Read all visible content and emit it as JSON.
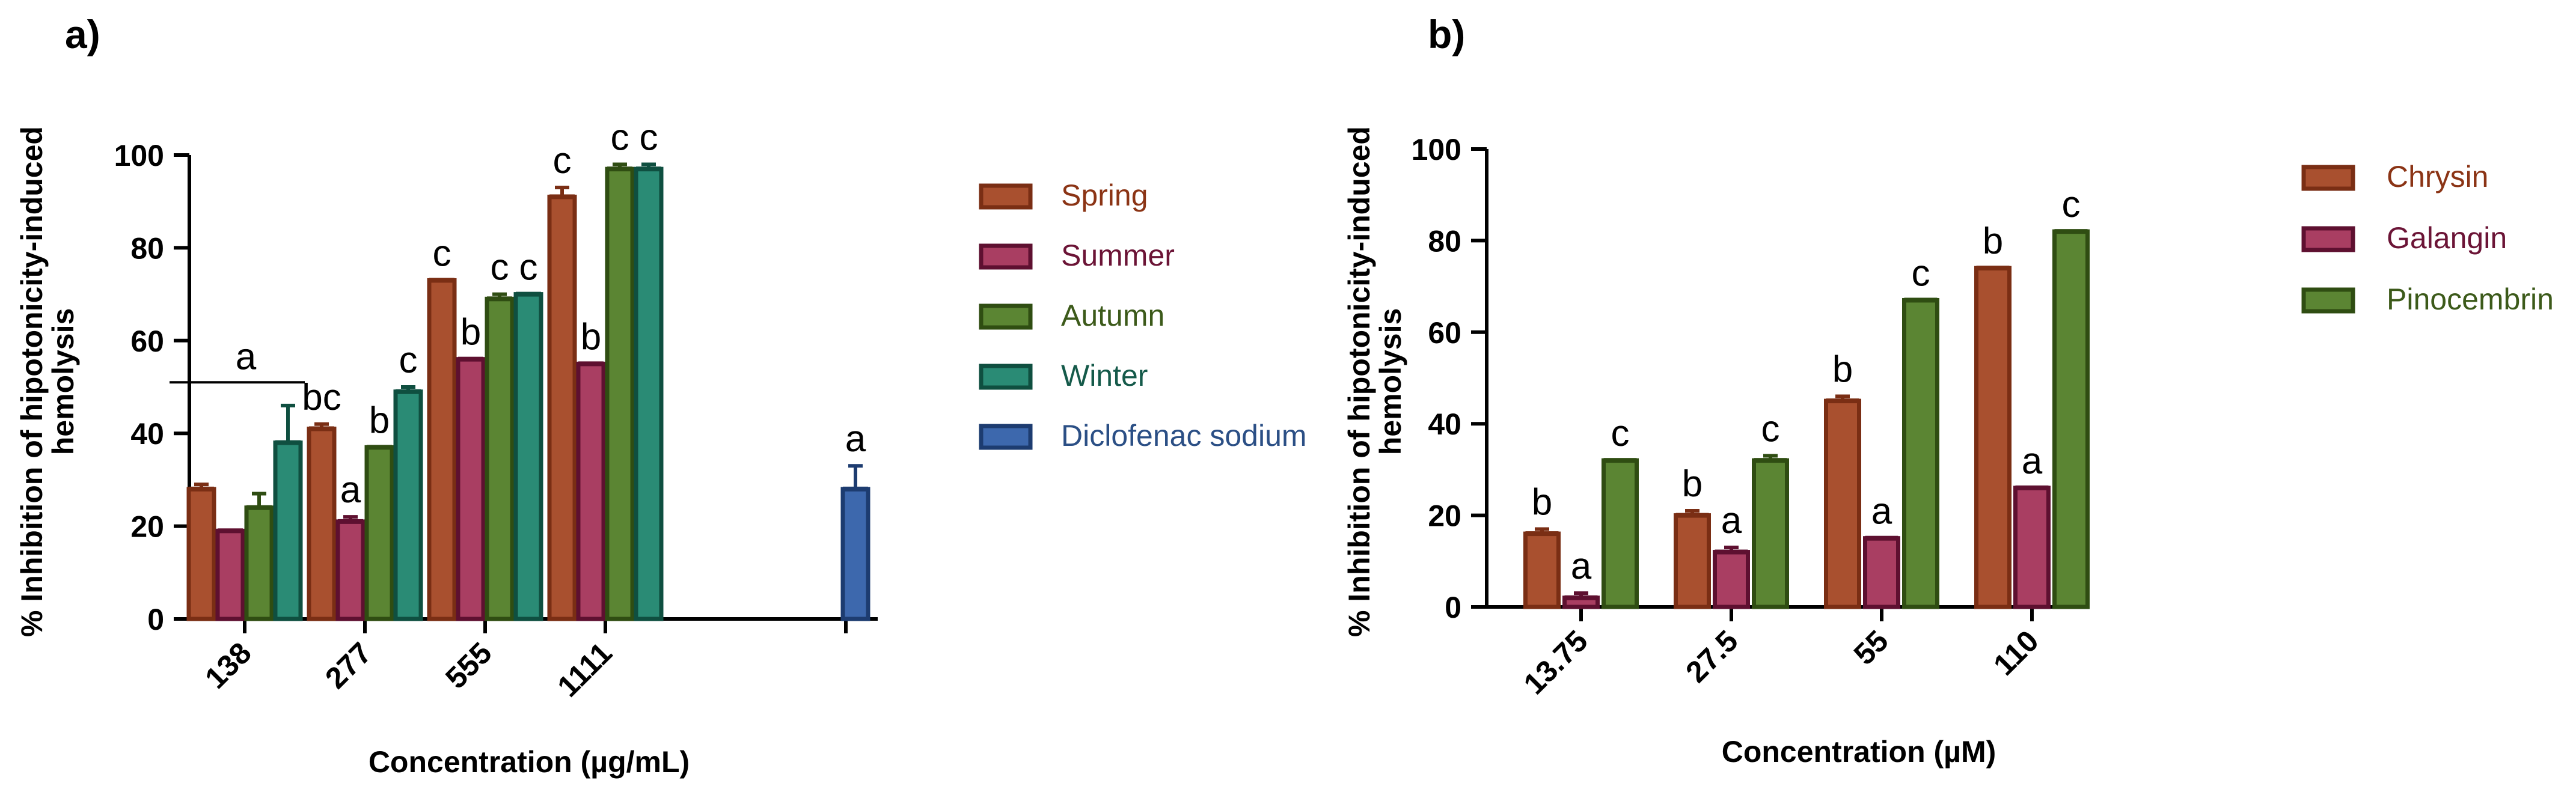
{
  "chart_data": [
    {
      "type": "bar",
      "panel_label": "a)",
      "xlabel": "Concentration (µg/mL)",
      "ylabel_lines": [
        "% Inhibition of hipotonicity-induced",
        "hemolysis"
      ],
      "ylim": [
        0,
        100
      ],
      "yticks": [
        0,
        20,
        40,
        60,
        80,
        100
      ],
      "categories": [
        "138",
        "277",
        "555",
        "1111",
        ""
      ],
      "legend_position": "right",
      "series": [
        {
          "name": "Spring",
          "color": "#a9502f",
          "edge": "#7a2e14",
          "text_color": "#8b3415",
          "values": [
            28,
            41,
            73,
            91,
            null
          ],
          "errors": [
            1,
            1,
            0,
            2,
            null
          ],
          "letters": [
            "",
            "bc",
            "c",
            "c",
            ""
          ]
        },
        {
          "name": "Summer",
          "color": "#a93e62",
          "edge": "#5e1030",
          "text_color": "#6b1436",
          "values": [
            19,
            21,
            56,
            55,
            null
          ],
          "errors": [
            0,
            1,
            0,
            0,
            null
          ],
          "letters": [
            "",
            "a",
            "b",
            "b",
            ""
          ]
        },
        {
          "name": "Autumn",
          "color": "#5b8533",
          "edge": "#2f4d12",
          "text_color": "#3c5a1a",
          "values": [
            24,
            37,
            69,
            97,
            null
          ],
          "errors": [
            3,
            0,
            1,
            1,
            null
          ],
          "letters": [
            "",
            "b",
            "c",
            "c",
            ""
          ]
        },
        {
          "name": "Winter",
          "color": "#2a8b75",
          "edge": "#0f4f40",
          "text_color": "#155a4a",
          "values": [
            38,
            49,
            70,
            97,
            null
          ],
          "errors": [
            8,
            1,
            0,
            1,
            null
          ],
          "letters": [
            "",
            "c",
            "c",
            "c",
            ""
          ]
        },
        {
          "name": "Diclofenac sodium",
          "color": "#3d68ad",
          "edge": "#1d3c70",
          "text_color": "#2b4f85",
          "values": [
            null,
            null,
            null,
            null,
            28
          ],
          "errors": [
            null,
            null,
            null,
            null,
            5
          ],
          "letters": [
            "",
            "",
            "",
            "",
            "a"
          ]
        }
      ],
      "group_annotation": {
        "text": "a",
        "category_index": 0,
        "y": 51
      }
    },
    {
      "type": "bar",
      "panel_label": "b)",
      "xlabel": "Concentration (µM)",
      "ylabel_lines": [
        "% Inhibition of hipotonicity-induced",
        "hemolysis"
      ],
      "ylim": [
        0,
        100
      ],
      "yticks": [
        0,
        20,
        40,
        60,
        80,
        100
      ],
      "categories": [
        "13.75",
        "27.5",
        "55",
        "110"
      ],
      "legend_position": "right",
      "series": [
        {
          "name": "Chrysin",
          "color": "#a9502f",
          "edge": "#7a2e14",
          "text_color": "#8b3415",
          "values": [
            16,
            20,
            45,
            74
          ],
          "errors": [
            1,
            1,
            1,
            0
          ],
          "letters": [
            "b",
            "b",
            "b",
            "b"
          ]
        },
        {
          "name": "Galangin",
          "color": "#a93e62",
          "edge": "#5e1030",
          "text_color": "#6b1436",
          "values": [
            2,
            12,
            15,
            26
          ],
          "errors": [
            1,
            1,
            0,
            0
          ],
          "letters": [
            "a",
            "a",
            "a",
            "a"
          ]
        },
        {
          "name": "Pinocembrin",
          "color": "#5b8533",
          "edge": "#2f4d12",
          "text_color": "#3c5a1a",
          "values": [
            32,
            32,
            67,
            82
          ],
          "errors": [
            0,
            1,
            0,
            0
          ],
          "letters": [
            "c",
            "c",
            "c",
            "c"
          ]
        }
      ]
    }
  ]
}
